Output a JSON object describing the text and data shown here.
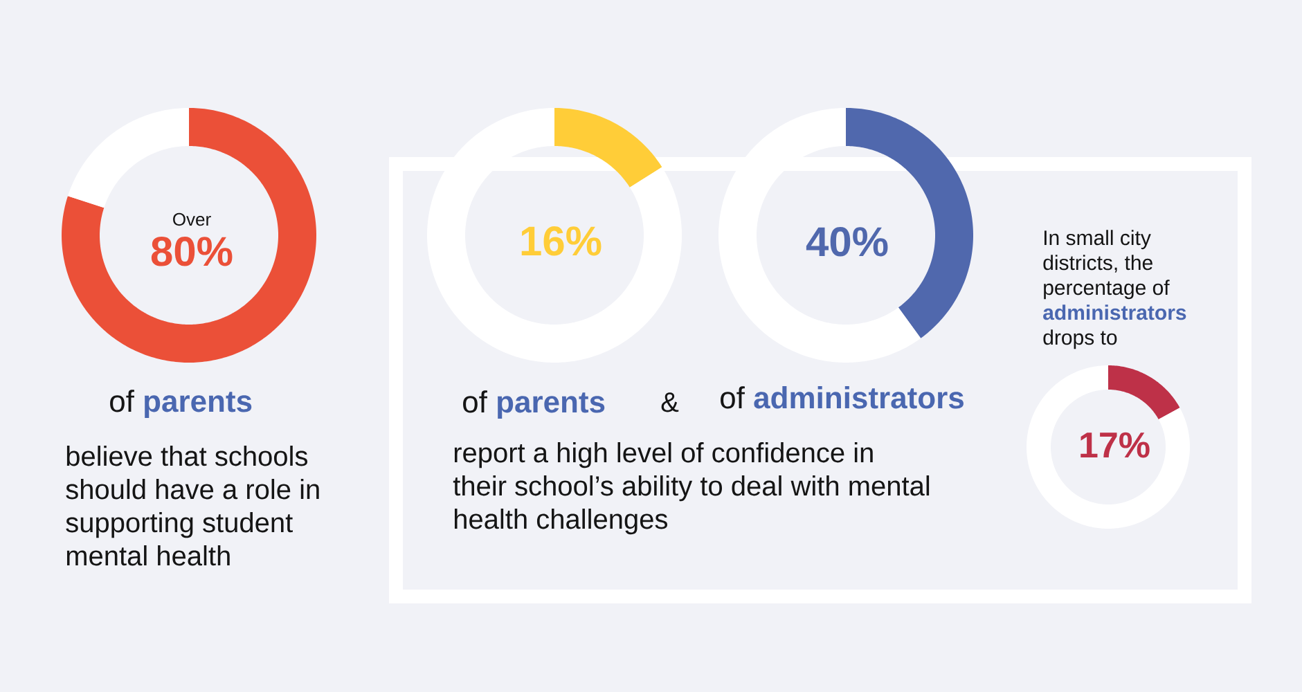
{
  "chart_data": [
    {
      "type": "donut",
      "categories": [
        null,
        null
      ],
      "values": [
        80,
        20
      ],
      "colors": [
        "#eb5038",
        "#ffffff"
      ],
      "annotations": [
        "Over",
        "80%",
        "of **parents**",
        "believe that schools should have a role in supporting student mental health"
      ]
    },
    {
      "type": "donut",
      "categories": [
        null,
        null
      ],
      "values": [
        16,
        84
      ],
      "colors": [
        "#ffcd38",
        "#ffffff"
      ],
      "annotations": [
        "16%",
        "of **parents**",
        "&",
        "report a high level of confidence in their school’s ability to deal with mental health challenges"
      ]
    },
    {
      "type": "donut",
      "categories": [
        null,
        null
      ],
      "values": [
        40,
        60
      ],
      "colors": [
        "#5068ad",
        "#ffffff"
      ],
      "annotations": [
        "40%",
        "of **administrators**"
      ]
    },
    {
      "type": "donut",
      "categories": [
        null,
        null
      ],
      "values": [
        17,
        83
      ],
      "colors": [
        "#be3148",
        "#ffffff"
      ],
      "annotations": [
        "In small city districts, the percentage of **administrators** drops to",
        "17%"
      ]
    }
  ]
}
